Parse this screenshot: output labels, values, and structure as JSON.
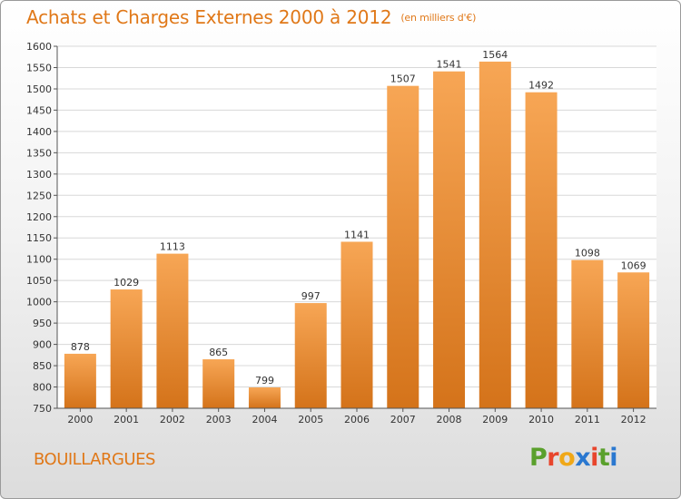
{
  "header": {
    "title": "Achats et Charges Externes 2000 à 2012",
    "unit": "(en milliers d'€)"
  },
  "footer": {
    "city": "BOUILLARGUES",
    "logo_letters": [
      "P",
      "r",
      "o",
      "x",
      "i",
      "t",
      "i"
    ],
    "logo_colors": [
      "#5aa02c",
      "#e8452c",
      "#f0a818",
      "#2a78d0",
      "#e8452c",
      "#5aa02c",
      "#2a78d0"
    ]
  },
  "colors": {
    "bar_light": "#f7a655",
    "bar_dark": "#d4731a",
    "title": "#e07818",
    "grid": "#d8d8d8"
  },
  "chart_data": {
    "type": "bar",
    "title": "Achats et Charges Externes 2000 à 2012",
    "subtitle": "(en milliers d'€)",
    "categories": [
      "2000",
      "2001",
      "2002",
      "2003",
      "2004",
      "2005",
      "2006",
      "2007",
      "2008",
      "2009",
      "2010",
      "2011",
      "2012"
    ],
    "values": [
      878,
      1029,
      1113,
      865,
      799,
      997,
      1141,
      1507,
      1541,
      1564,
      1492,
      1098,
      1069
    ],
    "ylim": [
      750,
      1600
    ],
    "yticks": [
      750,
      800,
      850,
      900,
      950,
      1000,
      1050,
      1100,
      1150,
      1200,
      1250,
      1300,
      1350,
      1400,
      1450,
      1500,
      1550,
      1600
    ],
    "grid": true,
    "legend": "none"
  }
}
